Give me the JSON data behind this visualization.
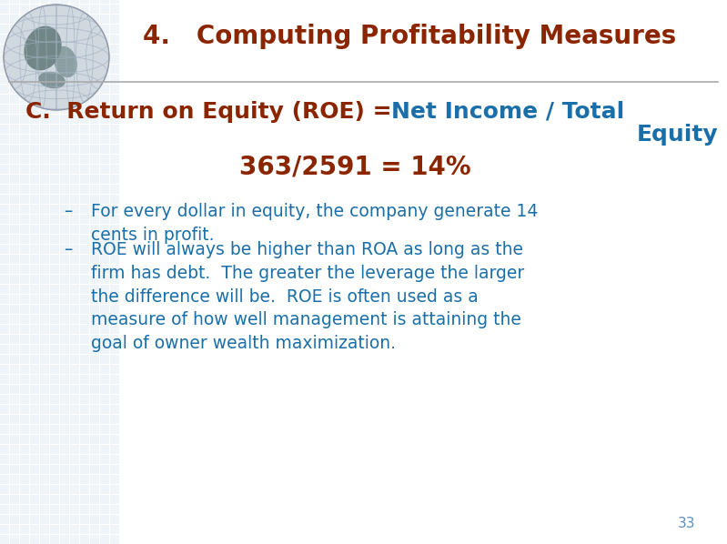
{
  "title": "4.   Computing Profitability Measures",
  "title_color": "#8B2500",
  "title_fontsize": 20,
  "bg_color": "#FFFFFF",
  "line_color": "#AAAAAA",
  "heading_brown": "C.  Return on Equity (ROE) =",
  "heading_blue_line1": " Net Income / Total",
  "heading_blue_line2": "Equity",
  "heading_brown_color": "#8B2500",
  "heading_blue_color": "#1B6FA8",
  "heading_fontsize": 18,
  "formula": "363/2591 = 14%",
  "formula_color": "#8B2500",
  "formula_fontsize": 20,
  "bullet1_line1": "For every dollar in equity, the company generate 14",
  "bullet1_line2": "cents in profit.",
  "bullet2": "ROE will always be higher than ROA as long as the\nfirm has debt.  The greater the leverage the larger\nthe difference will be.  ROE is often used as a\nmeasure of how well management is attaining the\ngoal of owner wealth maximization.",
  "bullet_color": "#1B6FA8",
  "bullet_fontsize": 13.5,
  "dash_color": "#1B6FA8",
  "page_number": "33",
  "page_number_color": "#5B8DB8",
  "page_number_fontsize": 11,
  "watermark_color": "#DDE8F0",
  "globe_base": "#C8D8E8",
  "globe_dark": "#607080",
  "globe_line": "#8899AA"
}
